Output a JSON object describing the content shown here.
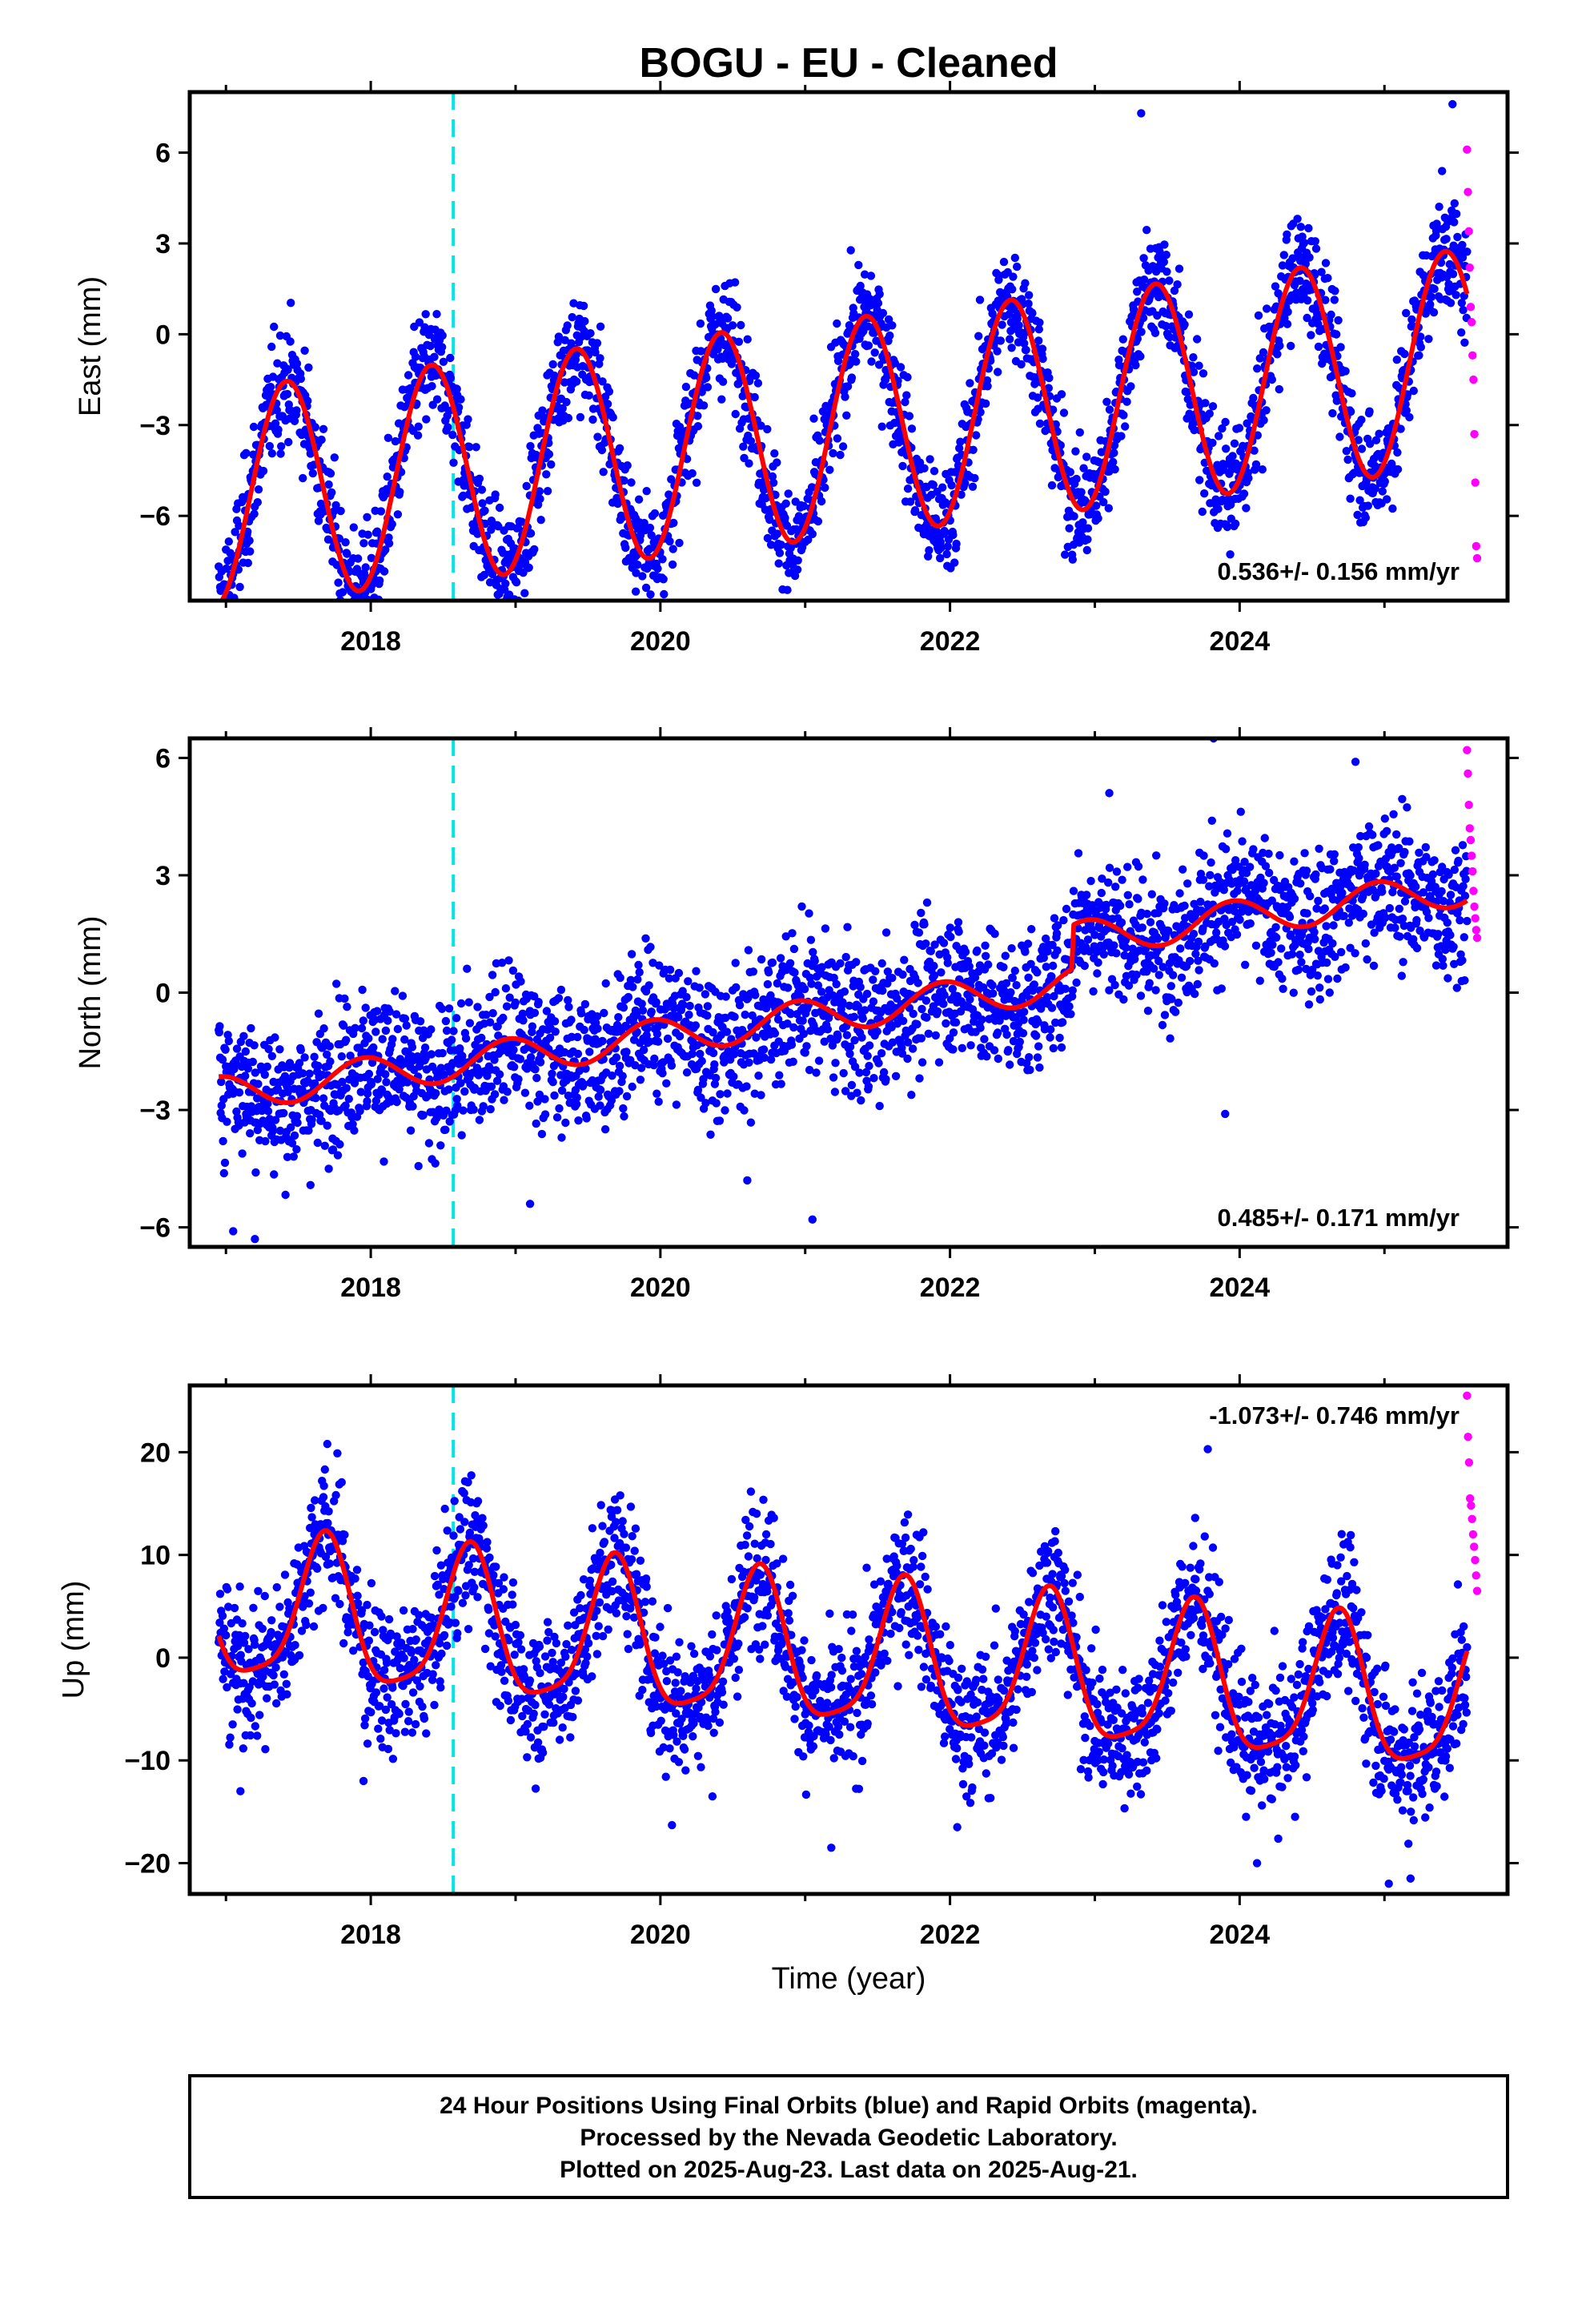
{
  "title": "BOGU  - EU - Cleaned",
  "colors": {
    "final_orbits": "#0000ff",
    "rapid_orbits": "#ff00ff",
    "model_fit": "#ff0000",
    "equipment_change": "#00e5e5",
    "frame": "#000000"
  },
  "legend_box": {
    "line1": "24 Hour Positions Using Final Orbits (blue) and Rapid Orbits (magenta).",
    "line2": "Processed by the Nevada Geodetic Laboratory.",
    "line3": "Plotted on 2025-Aug-23. Last data on 2025-Aug-21."
  },
  "chart_data": [
    {
      "type": "scatter",
      "panel": "east",
      "ylabel": "East (mm)",
      "xlabel": "",
      "xlim": [
        2016.75,
        2025.85
      ],
      "ylim": [
        -8.8,
        8.0
      ],
      "xticks": [
        2018,
        2020,
        2022,
        2024
      ],
      "xtick_labels": [
        "2018",
        "2020",
        "2022",
        "2024"
      ],
      "yticks": [
        -6,
        -3,
        0,
        3,
        6
      ],
      "ytick_labels": [
        "−6",
        "−3",
        "0",
        "3",
        "6"
      ],
      "rate_label": "0.536+/- 0.156 mm/yr",
      "rate_position": "bottom-right",
      "equipment_change_year": 2018.57,
      "data_span": [
        2016.95,
        2025.57
      ],
      "rapid_span": [
        2025.57,
        2025.64
      ],
      "series": [
        {
          "role": "final_orbits_daily",
          "model": {
            "offset": -5.4,
            "trend": 0.536,
            "annual_amp": 3.6,
            "peak_phase": 0.42,
            "semiannual_amp": 0.0,
            "semiannual_phase": 0.0,
            "noise_sd": 0.95
          }
        },
        {
          "role": "model_fit"
        }
      ],
      "rapid_values": [
        6.1,
        4.7,
        3.4,
        2.2,
        0.9,
        0.4,
        -0.7,
        -1.5,
        -3.3,
        -4.9,
        -7.0,
        -7.4
      ],
      "outliers": [
        [
          2017.95,
          -8.2
        ],
        [
          2019.08,
          -7.7
        ],
        [
          2019.83,
          -8.5
        ],
        [
          2021.05,
          -6.6
        ],
        [
          2024.89,
          -4.7
        ],
        [
          2025.47,
          7.6
        ],
        [
          2023.32,
          7.3
        ]
      ]
    },
    {
      "type": "scatter",
      "panel": "north",
      "ylabel": "North (mm)",
      "xlabel": "",
      "xlim": [
        2016.75,
        2025.85
      ],
      "ylim": [
        -6.5,
        6.5
      ],
      "xticks": [
        2018,
        2020,
        2022,
        2024
      ],
      "xtick_labels": [
        "2018",
        "2020",
        "2022",
        "2024"
      ],
      "yticks": [
        -6,
        -3,
        0,
        3,
        6
      ],
      "ytick_labels": [
        "−6",
        "−3",
        "0",
        "3",
        "6"
      ],
      "rate_label": "0.485+/- 0.171 mm/yr",
      "rate_position": "bottom-right",
      "equipment_change_year": 2018.57,
      "data_span": [
        2016.95,
        2025.57
      ],
      "rapid_span": [
        2025.57,
        2025.64
      ],
      "series": [
        {
          "role": "final_orbits_daily",
          "model": {
            "offset": -2.6,
            "trend": 0.485,
            "annual_amp": 0.45,
            "peak_phase": 0.95,
            "semiannual_amp": 0.0,
            "semiannual_phase": 0.0,
            "noise_sd": 0.9,
            "step_year": 2022.85,
            "step_size": 1.1
          }
        },
        {
          "role": "model_fit"
        }
      ],
      "rapid_values": [
        6.2,
        5.6,
        4.8,
        4.2,
        3.9,
        3.5,
        3.1,
        2.6,
        2.2,
        1.9,
        1.6,
        1.4
      ],
      "outliers": [
        [
          2017.05,
          -6.1
        ],
        [
          2017.2,
          -6.3
        ],
        [
          2021.05,
          -5.8
        ],
        [
          2019.1,
          -5.4
        ],
        [
          2023.1,
          5.1
        ],
        [
          2023.82,
          6.5
        ],
        [
          2024.8,
          5.9
        ],
        [
          2020.6,
          -4.8
        ],
        [
          2023.9,
          -3.1
        ]
      ]
    },
    {
      "type": "scatter",
      "panel": "up",
      "ylabel": "Up (mm)",
      "xlabel": "Time (year)",
      "xlim": [
        2016.75,
        2025.85
      ],
      "ylim": [
        -23,
        26.5
      ],
      "xticks": [
        2018,
        2020,
        2022,
        2024
      ],
      "xtick_labels": [
        "2018",
        "2020",
        "2022",
        "2024"
      ],
      "yticks": [
        -20,
        -10,
        0,
        10,
        20
      ],
      "ytick_labels": [
        "−20",
        "−10",
        "0",
        "10",
        "20"
      ],
      "rate_label": "-1.073+/- 0.746 mm/yr",
      "rate_position": "top-right",
      "equipment_change_year": 2018.57,
      "data_span": [
        2016.95,
        2025.57
      ],
      "rapid_span": [
        2025.57,
        2025.64
      ],
      "series": [
        {
          "role": "final_orbits_daily",
          "model": {
            "offset": 4.6,
            "trend": -1.073,
            "annual_amp": 7.0,
            "peak_phase": 0.68,
            "semiannual_amp": 1.6,
            "semiannual_phase": 0.2,
            "noise_sd": 3.4
          }
        },
        {
          "role": "model_fit"
        }
      ],
      "rapid_values": [
        25.5,
        21.5,
        19.0,
        15.5,
        14.8,
        13.5,
        12.0,
        10.8,
        9.5,
        8.0,
        6.5
      ],
      "outliers": [
        [
          2017.1,
          -13.0
        ],
        [
          2017.95,
          -12.0
        ],
        [
          2020.08,
          -16.3
        ],
        [
          2021.18,
          -18.5
        ],
        [
          2022.05,
          -16.5
        ],
        [
          2024.12,
          -20.0
        ],
        [
          2025.03,
          -22.0
        ],
        [
          2025.18,
          -21.5
        ],
        [
          2023.78,
          20.3
        ],
        [
          2017.7,
          20.8
        ]
      ]
    }
  ]
}
